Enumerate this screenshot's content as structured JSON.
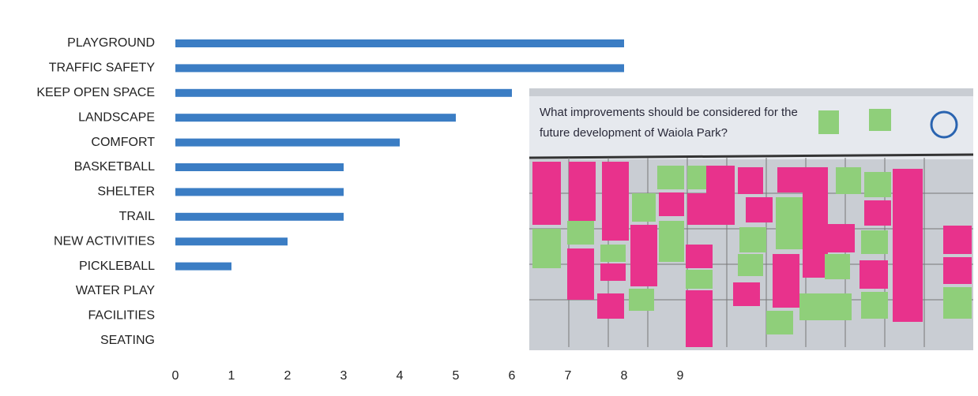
{
  "chart_data": {
    "type": "bar",
    "orientation": "horizontal",
    "categories": [
      "PLAYGROUND",
      "TRAFFIC SAFETY",
      "KEEP OPEN SPACE",
      "LANDSCAPE",
      "COMFORT",
      "BASKETBALL",
      "SHELTER",
      "TRAIL",
      "NEW ACTIVITIES",
      "PICKLEBALL",
      "WATER PLAY",
      "FACILITIES",
      "SEATING"
    ],
    "values": [
      8,
      8,
      6,
      5,
      4,
      3,
      3,
      3,
      2,
      1,
      0,
      0,
      0
    ],
    "color": "#3b7dc4",
    "xlim": [
      0,
      9
    ],
    "xticks": [
      0,
      1,
      2,
      3,
      4,
      5,
      6,
      7,
      8,
      9
    ],
    "grid": false,
    "annotations": [
      "What improvements should be considered for the",
      "future development of Waiola Park?"
    ]
  }
}
